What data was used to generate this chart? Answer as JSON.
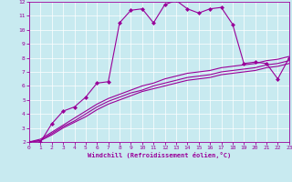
{
  "background_color": "#c8eaf0",
  "line_color": "#990099",
  "grid_color": "#ffffff",
  "xlabel": "Windchill (Refroidissement éolien,°C)",
  "xlim": [
    0,
    23
  ],
  "ylim": [
    2,
    12
  ],
  "xticks": [
    0,
    1,
    2,
    3,
    4,
    5,
    6,
    7,
    8,
    9,
    10,
    11,
    12,
    13,
    14,
    15,
    16,
    17,
    18,
    19,
    20,
    21,
    22,
    23
  ],
  "yticks": [
    2,
    3,
    4,
    5,
    6,
    7,
    8,
    9,
    10,
    11,
    12
  ],
  "series1_x": [
    0,
    1,
    2,
    3,
    4,
    5,
    6,
    7,
    8,
    9,
    10,
    11,
    12,
    13,
    14,
    15,
    16,
    17,
    18,
    19,
    20,
    21,
    22,
    23
  ],
  "series1_y": [
    2.0,
    2.0,
    3.3,
    4.2,
    4.5,
    5.2,
    6.2,
    6.3,
    10.5,
    11.4,
    11.5,
    10.5,
    11.8,
    12.1,
    11.5,
    11.2,
    11.5,
    11.6,
    10.4,
    7.6,
    7.7,
    7.6,
    6.5,
    8.0
  ],
  "series2_x": [
    0,
    1,
    2,
    3,
    4,
    5,
    6,
    7,
    8,
    9,
    10,
    11,
    12,
    13,
    14,
    15,
    16,
    17,
    18,
    19,
    20,
    21,
    22,
    23
  ],
  "series2_y": [
    2.0,
    2.1,
    2.5,
    3.0,
    3.4,
    3.8,
    4.3,
    4.7,
    5.0,
    5.3,
    5.6,
    5.8,
    6.0,
    6.2,
    6.4,
    6.5,
    6.6,
    6.8,
    6.9,
    7.0,
    7.1,
    7.3,
    7.4,
    7.6
  ],
  "series3_x": [
    0,
    1,
    2,
    3,
    4,
    5,
    6,
    7,
    8,
    9,
    10,
    11,
    12,
    13,
    14,
    15,
    16,
    17,
    18,
    19,
    20,
    21,
    22,
    23
  ],
  "series3_y": [
    2.0,
    2.1,
    2.6,
    3.1,
    3.5,
    4.0,
    4.5,
    4.9,
    5.2,
    5.5,
    5.7,
    6.0,
    6.2,
    6.4,
    6.6,
    6.7,
    6.8,
    7.0,
    7.1,
    7.2,
    7.3,
    7.5,
    7.6,
    7.8
  ],
  "series4_x": [
    0,
    1,
    2,
    3,
    4,
    5,
    6,
    7,
    8,
    9,
    10,
    11,
    12,
    13,
    14,
    15,
    16,
    17,
    18,
    19,
    20,
    21,
    22,
    23
  ],
  "series4_y": [
    2.0,
    2.2,
    2.7,
    3.2,
    3.7,
    4.2,
    4.7,
    5.1,
    5.4,
    5.7,
    6.0,
    6.2,
    6.5,
    6.7,
    6.9,
    7.0,
    7.1,
    7.3,
    7.4,
    7.5,
    7.6,
    7.8,
    7.9,
    8.1
  ],
  "marker": "D",
  "marker_size": 2.0,
  "linewidth": 0.8
}
